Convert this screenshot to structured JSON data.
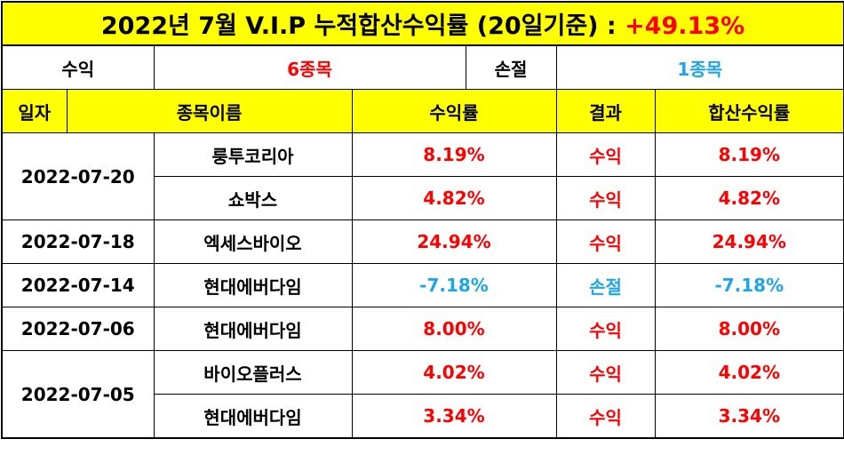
{
  "title": {
    "text": "2022년 7월 V.I.P 누적합산수익률 (20일기준) : ",
    "total_return": "+49.13%"
  },
  "summary": {
    "profit_label": "수익",
    "profit_count": "6종목",
    "loss_label": "손절",
    "loss_count": "1종목"
  },
  "headers": {
    "date": "일자",
    "name": "종목이름",
    "return": "수익률",
    "result": "결과",
    "cumulative": "합산수익률"
  },
  "rows": [
    {
      "date": "2022-07-20",
      "name": "룽투코리아",
      "return": "8.19%",
      "result": "수익",
      "cumulative": "8.19%"
    },
    {
      "date": "",
      "name": "쇼박스",
      "return": "4.82%",
      "result": "수익",
      "cumulative": "4.82%"
    },
    {
      "date": "2022-07-18",
      "name": "엑세스바이오",
      "return": "24.94%",
      "result": "수익",
      "cumulative": "24.94%"
    },
    {
      "date": "2022-07-14",
      "name": "현대에버다임",
      "return": "-7.18%",
      "result": "손절",
      "cumulative": "-7.18%"
    },
    {
      "date": "2022-07-06",
      "name": "현대에버다임",
      "return": "8.00%",
      "result": "수익",
      "cumulative": "8.00%"
    },
    {
      "date": "2022-07-05",
      "name": "바이오플러스",
      "return": "4.02%",
      "result": "수익",
      "cumulative": "4.02%"
    },
    {
      "date": "",
      "name": "현대에버다임",
      "return": "3.34%",
      "result": "수익",
      "cumulative": "3.34%"
    }
  ],
  "colors": {
    "header_bg": "#ffff00",
    "profit": "#ff0000",
    "loss": "#1fa5e8"
  }
}
